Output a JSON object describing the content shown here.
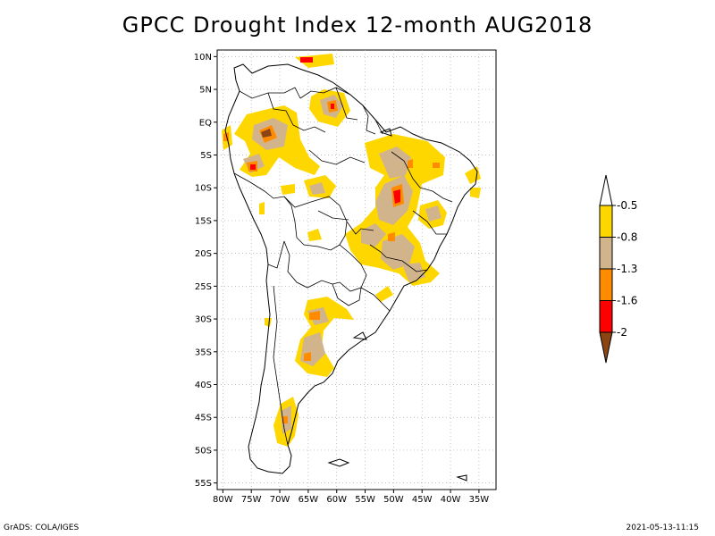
{
  "title": "GPCC Drought Index 12-month AUG2018",
  "map": {
    "lat_ticks": [
      "10N",
      "5N",
      "EQ",
      "5S",
      "10S",
      "15S",
      "20S",
      "25S",
      "30S",
      "35S",
      "40S",
      "45S",
      "50S",
      "55S"
    ],
    "lon_ticks": [
      "80W",
      "75W",
      "70W",
      "65W",
      "60W",
      "55W",
      "50W",
      "45W",
      "40W",
      "35W"
    ],
    "extent": {
      "lon_min": -81,
      "lon_max": -32,
      "lat_min": -56,
      "lat_max": 11
    },
    "grid": true
  },
  "legend": {
    "labels": [
      "-0.5",
      "-0.8",
      "-1.3",
      "-1.6",
      "-2"
    ],
    "colors": [
      "#ffffff",
      "#ffd700",
      "#d2b48c",
      "#ff8c00",
      "#ff0000",
      "#8b4513"
    ]
  },
  "footer": {
    "left": "GrADS: COLA/IGES",
    "right": "2021-05-13-11:15"
  }
}
